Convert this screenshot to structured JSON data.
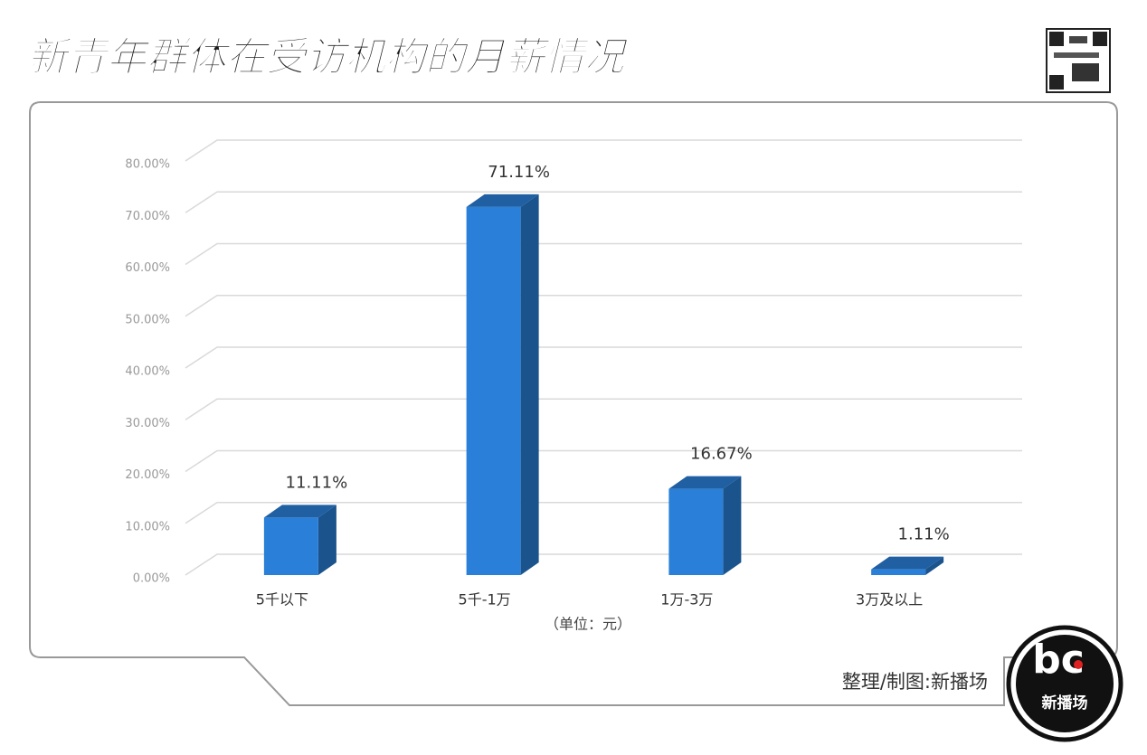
{
  "chart_data": {
    "type": "bar",
    "title": "新青年群体在受访机构的月薪情况",
    "categories": [
      "5千以下",
      "5千-1万",
      "1万-3万",
      "3万及以上"
    ],
    "values": [
      11.11,
      71.11,
      16.67,
      1.11
    ],
    "value_labels": [
      "11.11%",
      "71.11%",
      "16.67%",
      "1.11%"
    ],
    "color": "#2a7fd8",
    "ylim": [
      0,
      80
    ],
    "yticks": [
      {
        "value": 0,
        "label": "0.00%"
      },
      {
        "value": 10,
        "label": "10.00%"
      },
      {
        "value": 20,
        "label": "20.00%"
      },
      {
        "value": 30,
        "label": "30.00%"
      },
      {
        "value": 40,
        "label": "40.00%"
      },
      {
        "value": 50,
        "label": "50.00%"
      },
      {
        "value": 60,
        "label": "60.00%"
      },
      {
        "value": 70,
        "label": "70.00%"
      },
      {
        "value": 80,
        "label": "80.00%"
      }
    ],
    "grid": true,
    "x_label": "（单位：元）",
    "source": "整理/制图:新播场",
    "logo_text": "新播场"
  }
}
